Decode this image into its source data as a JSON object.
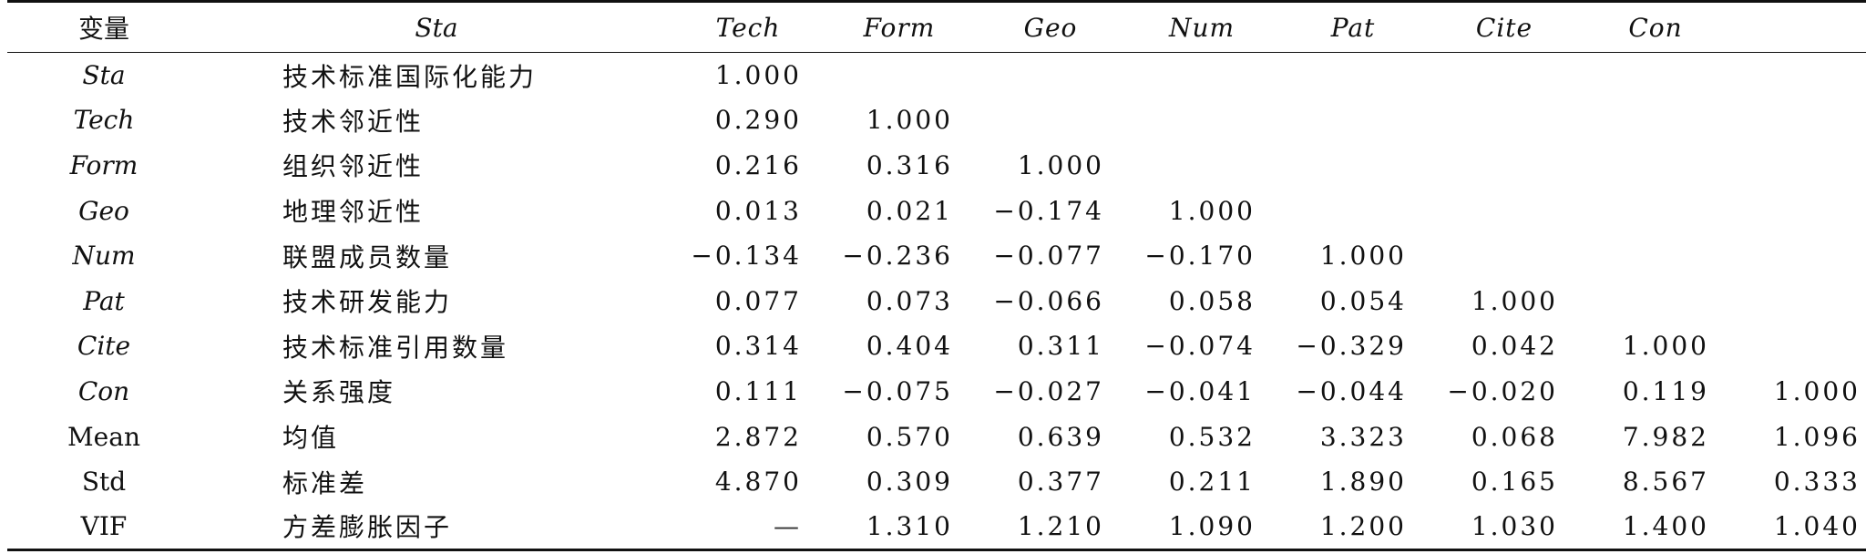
{
  "header": {
    "var_label": "变量",
    "name_label": "Sta",
    "cols": [
      "Tech",
      "Form",
      "Geo",
      "Num",
      "Pat",
      "Cite",
      "Con",
      ""
    ]
  },
  "rows": [
    {
      "var": "Sta",
      "name": "技术标准国际化能力",
      "vals": [
        "1.000",
        "",
        "",
        "",
        "",
        "",
        "",
        ""
      ]
    },
    {
      "var": "Tech",
      "name": "技术邻近性",
      "vals": [
        "0.290",
        "1.000",
        "",
        "",
        "",
        "",
        "",
        ""
      ]
    },
    {
      "var": "Form",
      "name": "组织邻近性",
      "vals": [
        "0.216",
        "0.316",
        "1.000",
        "",
        "",
        "",
        "",
        ""
      ]
    },
    {
      "var": "Geo",
      "name": "地理邻近性",
      "vals": [
        "0.013",
        "0.021",
        "−0.174",
        "1.000",
        "",
        "",
        "",
        ""
      ]
    },
    {
      "var": "Num",
      "name": "联盟成员数量",
      "vals": [
        "−0.134",
        "−0.236",
        "−0.077",
        "−0.170",
        "1.000",
        "",
        "",
        ""
      ]
    },
    {
      "var": "Pat",
      "name": "技术研发能力",
      "vals": [
        "0.077",
        "0.073",
        "−0.066",
        "0.058",
        "0.054",
        "1.000",
        "",
        ""
      ]
    },
    {
      "var": "Cite",
      "name": "技术标准引用数量",
      "vals": [
        "0.314",
        "0.404",
        "0.311",
        "−0.074",
        "−0.329",
        "0.042",
        "1.000",
        ""
      ]
    },
    {
      "var": "Con",
      "name": "关系强度",
      "vals": [
        "0.111",
        "−0.075",
        "−0.027",
        "−0.041",
        "−0.044",
        "−0.020",
        "0.119",
        "1.000"
      ]
    },
    {
      "var": "Mean",
      "name": "均值",
      "vals": [
        "2.872",
        "0.570",
        "0.639",
        "0.532",
        "3.323",
        "0.068",
        "7.982",
        "1.096"
      ]
    },
    {
      "var": "Std",
      "name": "标准差",
      "vals": [
        "4.870",
        "0.309",
        "0.377",
        "0.211",
        "1.890",
        "0.165",
        "8.567",
        "0.333"
      ]
    },
    {
      "var": "VIF",
      "name": "方差膨胀因子",
      "vals": [
        "—",
        "1.310",
        "1.210",
        "1.090",
        "1.200",
        "1.030",
        "1.400",
        "1.040"
      ]
    }
  ]
}
